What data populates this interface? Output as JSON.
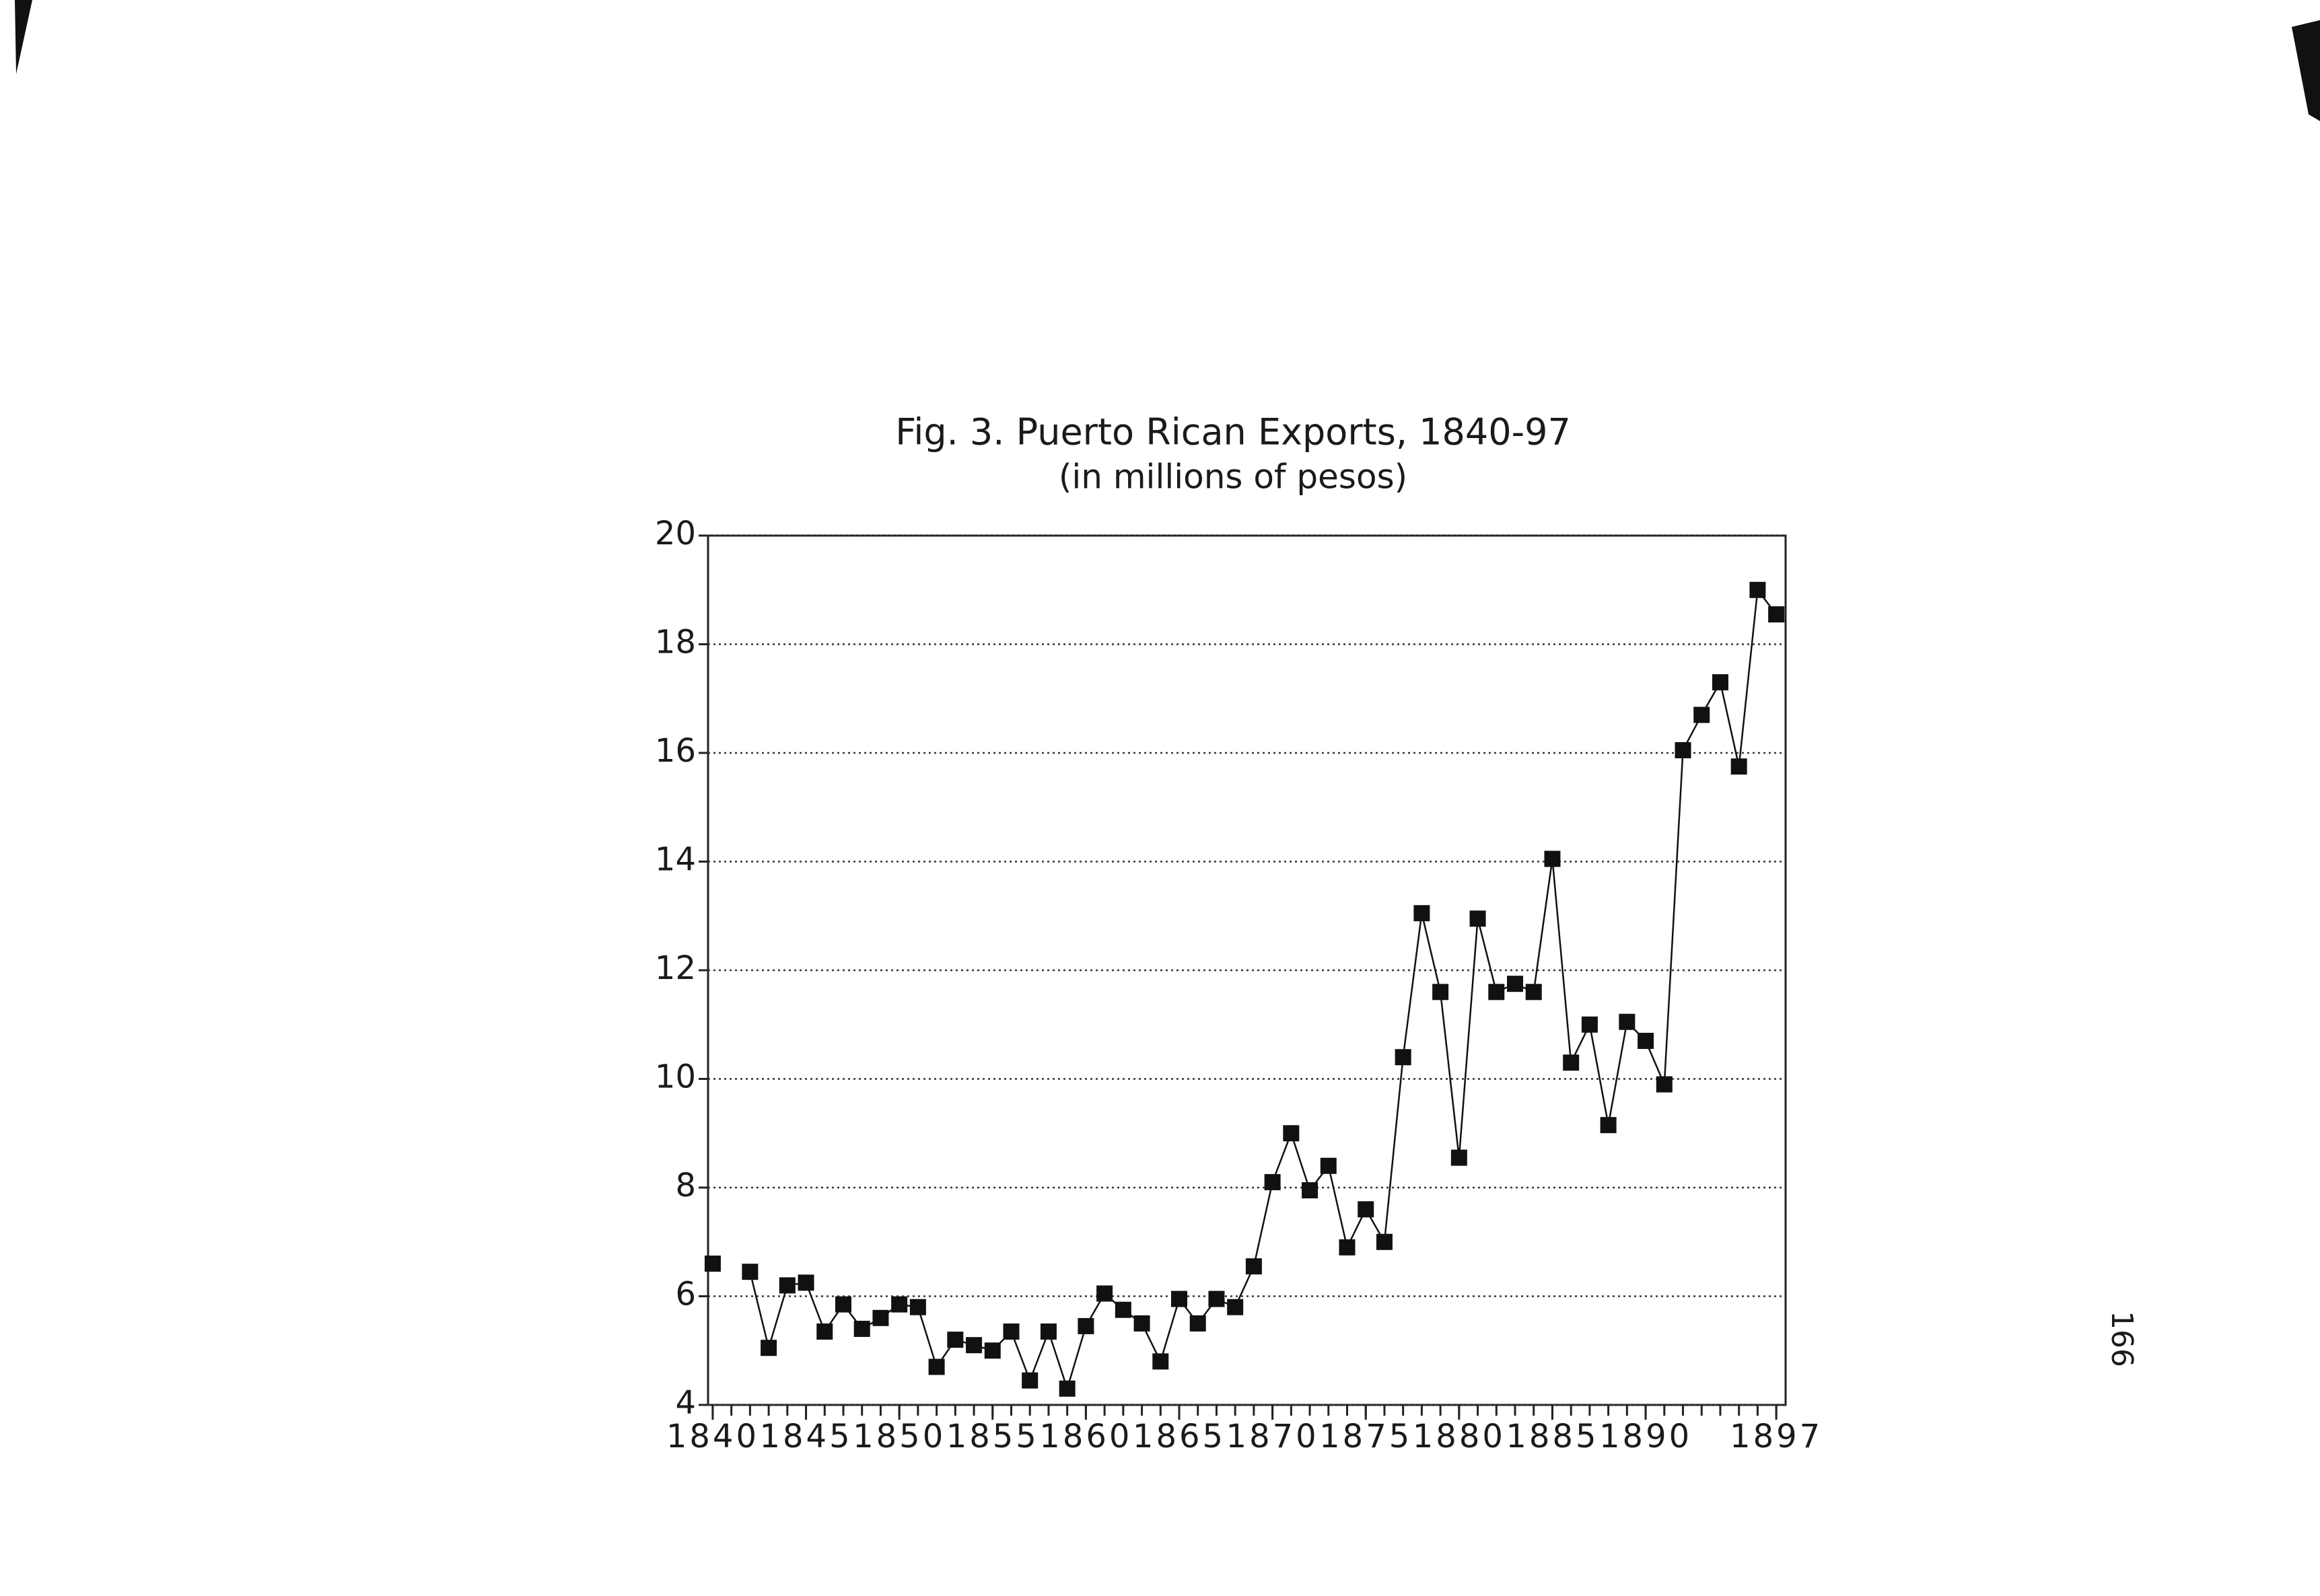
{
  "chart_data": {
    "type": "line",
    "title": "Fig. 3. Puerto Rican Exports, 1840-97",
    "subtitle": "(in millions of pesos)",
    "x": [
      1840,
      1841,
      1842,
      1843,
      1844,
      1845,
      1846,
      1847,
      1848,
      1849,
      1850,
      1851,
      1852,
      1853,
      1854,
      1855,
      1856,
      1857,
      1858,
      1859,
      1860,
      1861,
      1862,
      1863,
      1864,
      1865,
      1866,
      1867,
      1868,
      1869,
      1870,
      1871,
      1872,
      1873,
      1874,
      1875,
      1876,
      1877,
      1878,
      1879,
      1880,
      1881,
      1882,
      1883,
      1884,
      1885,
      1886,
      1887,
      1888,
      1889,
      1890,
      1891,
      1892,
      1893,
      1894,
      1895,
      1896,
      1897
    ],
    "series": [
      {
        "name": "Exports",
        "color": "#111111",
        "values": [
          6.6,
          null,
          6.45,
          5.05,
          6.2,
          6.25,
          5.35,
          5.85,
          5.4,
          5.6,
          5.85,
          5.8,
          4.7,
          5.2,
          5.1,
          5.0,
          5.35,
          4.45,
          5.35,
          4.3,
          5.45,
          6.05,
          5.75,
          5.5,
          4.8,
          5.95,
          5.5,
          5.95,
          5.8,
          6.55,
          8.1,
          9.0,
          7.95,
          8.4,
          6.9,
          7.6,
          7.0,
          10.4,
          13.05,
          11.6,
          8.55,
          12.95,
          11.6,
          11.75,
          11.6,
          14.05,
          10.3,
          11.0,
          9.15,
          11.05,
          10.7,
          9.9,
          16.05,
          16.7,
          17.3,
          15.75,
          19.0,
          18.55
        ]
      }
    ],
    "xlim": [
      1839.75,
      1897.5
    ],
    "xticks": [
      1840,
      1845,
      1850,
      1855,
      1860,
      1865,
      1870,
      1875,
      1880,
      1885,
      1890,
      1897
    ],
    "ylim": [
      4,
      20
    ],
    "yticks": [
      4,
      6,
      8,
      10,
      12,
      14,
      16,
      18,
      20
    ],
    "grid": true,
    "page_number": "166"
  }
}
